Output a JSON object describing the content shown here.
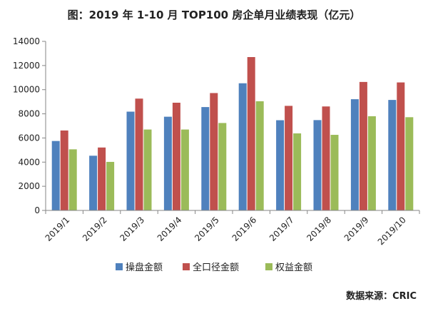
{
  "chart_data": {
    "type": "bar",
    "title": "图：2019 年 1-10 月 TOP100 房企单月业绩表现（亿元）",
    "categories": [
      "2019/1",
      "2019/2",
      "2019/3",
      "2019/4",
      "2019/5",
      "2019/6",
      "2019/7",
      "2019/8",
      "2019/9",
      "2019/10"
    ],
    "series": [
      {
        "name": "操盘金额",
        "color": "#4f81bd",
        "values": [
          5750,
          4530,
          8180,
          7760,
          8560,
          10530,
          7470,
          7480,
          9210,
          9150
        ]
      },
      {
        "name": "全口径金额",
        "color": "#c0504d",
        "values": [
          6620,
          5210,
          9260,
          8920,
          9720,
          12700,
          8660,
          8610,
          10640,
          10600
        ]
      },
      {
        "name": "权益金额",
        "color": "#9bbb59",
        "values": [
          5060,
          4020,
          6700,
          6700,
          7240,
          9040,
          6380,
          6260,
          7800,
          7720
        ]
      }
    ],
    "yticks": [
      "0",
      "2000",
      "4000",
      "6000",
      "8000",
      "10000",
      "12000",
      "14000"
    ],
    "ylim": [
      0,
      14000
    ],
    "grid": false,
    "legend_position": "bottom",
    "source": "数据来源：CRIC"
  }
}
